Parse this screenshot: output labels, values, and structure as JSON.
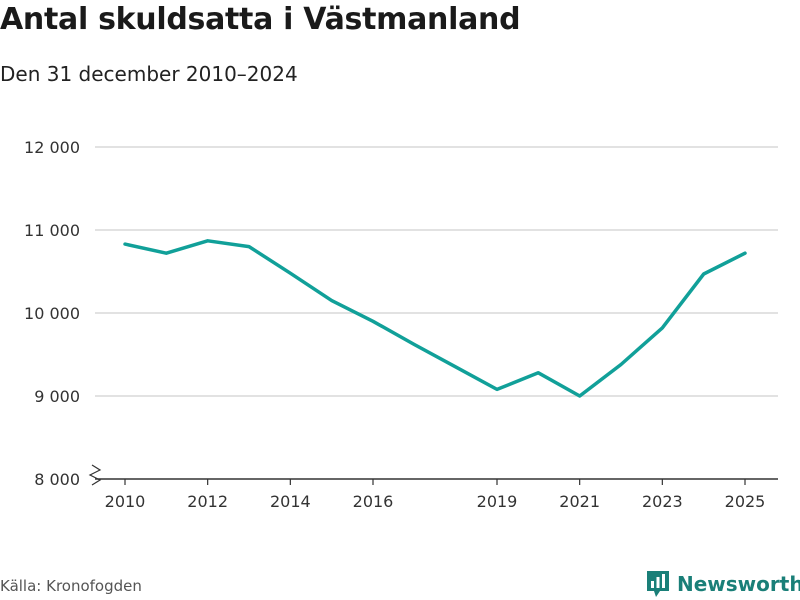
{
  "header": {
    "title": "Antal skuldsatta i Västmanland",
    "subtitle": "Den 31 december 2010–2024"
  },
  "footer": {
    "source": "Källa: Kronofogden",
    "brand": "Newsworthy"
  },
  "colors": {
    "line": "#11a099",
    "grid": "#d9d9d9",
    "axis": "#333333",
    "brand": "#1a7f78"
  },
  "chart_data": {
    "type": "line",
    "title": "Antal skuldsatta i Västmanland",
    "subtitle": "Den 31 december 2010–2024",
    "xlabel": "",
    "ylabel": "",
    "x": [
      2010,
      2011,
      2012,
      2013,
      2014,
      2015,
      2016,
      2017,
      2018,
      2019,
      2020,
      2021,
      2022,
      2023,
      2024,
      2025
    ],
    "series": [
      {
        "name": "Antal skuldsatta",
        "values": [
          10830,
          10720,
          10870,
          10800,
          10480,
          10150,
          9900,
          9620,
          9350,
          9080,
          9280,
          9000,
          9380,
          9820,
          10470,
          10720
        ]
      }
    ],
    "ylim": [
      8000,
      12000
    ],
    "xlim": [
      2010,
      2025
    ],
    "y_ticks": [
      8000,
      9000,
      10000,
      11000,
      12000
    ],
    "y_tick_labels": [
      "8 000",
      "9 000",
      "10 000",
      "11 000",
      "12 000"
    ],
    "x_ticks": [
      2010,
      2012,
      2014,
      2016,
      2019,
      2021,
      2023,
      2025
    ],
    "x_tick_labels": [
      "2010",
      "2012",
      "2014",
      "2016",
      "2019",
      "2021",
      "2023",
      "2025"
    ],
    "grid": true,
    "axis_break": true
  }
}
